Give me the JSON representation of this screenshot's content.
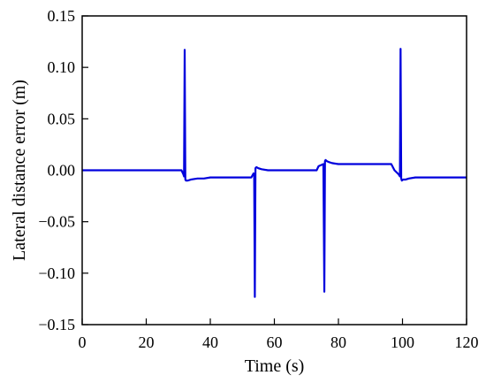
{
  "chart_data": {
    "type": "line",
    "title": "",
    "xlabel": "Time (s)",
    "ylabel": "Lateral distance error (m)",
    "xlim": [
      0,
      120
    ],
    "ylim": [
      -0.15,
      0.15
    ],
    "xticks": [
      0,
      20,
      40,
      60,
      80,
      100,
      120
    ],
    "yticks": [
      0.15,
      0.1,
      0.05,
      0.0,
      -0.05,
      -0.1,
      -0.15
    ],
    "xtick_labels": [
      "0",
      "20",
      "40",
      "60",
      "80",
      "100",
      "120"
    ],
    "ytick_labels": [
      "0.15",
      "0.10",
      "0.05",
      "0.00",
      "−0.05",
      "−0.10",
      "−0.15"
    ],
    "grid": false,
    "color": "#0000dd",
    "series": [
      {
        "x": [
          0,
          30,
          31,
          31.6,
          31.8,
          32.0,
          32.2,
          32.4,
          33,
          34,
          36,
          38,
          40,
          45,
          50,
          52.8,
          53.5,
          53.7,
          53.9,
          54.1,
          54.4,
          55,
          56,
          58,
          60,
          65,
          70,
          73.2,
          73.8,
          75.3,
          75.6,
          75.8,
          76.0,
          76.3,
          77,
          78,
          80,
          85,
          90,
          95,
          96.5,
          97.5,
          98.8,
          99.2,
          99.4,
          99.6,
          99.8,
          100.2,
          101,
          102,
          104,
          106,
          110,
          115,
          120
        ],
        "y": [
          0.0,
          0.0,
          0.0,
          -0.004,
          -0.006,
          0.117,
          -0.009,
          -0.01,
          -0.01,
          -0.009,
          -0.008,
          -0.008,
          -0.007,
          -0.007,
          -0.007,
          -0.007,
          -0.003,
          -0.006,
          -0.123,
          0.002,
          0.003,
          0.002,
          0.001,
          0.0,
          0.0,
          0.0,
          0.0,
          0.0,
          0.004,
          0.006,
          -0.118,
          0.009,
          0.01,
          0.009,
          0.008,
          0.007,
          0.006,
          0.006,
          0.006,
          0.006,
          0.006,
          0.0,
          -0.004,
          -0.006,
          0.118,
          -0.008,
          -0.01,
          -0.009,
          -0.009,
          -0.008,
          -0.007,
          -0.007,
          -0.007,
          -0.007,
          -0.007
        ]
      }
    ]
  }
}
